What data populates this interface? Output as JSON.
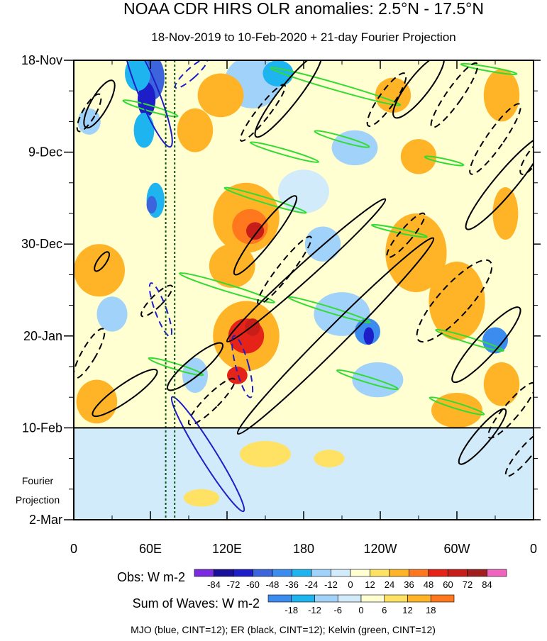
{
  "chart_data": {
    "type": "heatmap",
    "title": "NOAA CDR HIRS OLR anomalies: 2.5°N - 17.5°N",
    "subtitle": "18-Nov-2019 to 10-Feb-2020 + 21-day Fourier Projection",
    "x_axis": {
      "range_deg_east": [
        0,
        360
      ],
      "ticks": [
        {
          "label": "0",
          "lon": 0
        },
        {
          "label": "60E",
          "lon": 60
        },
        {
          "label": "120E",
          "lon": 120
        },
        {
          "label": "180",
          "lon": 180
        },
        {
          "label": "120W",
          "lon": 240
        },
        {
          "label": "60W",
          "lon": 300
        },
        {
          "label": "0",
          "lon": 360
        }
      ]
    },
    "y_axis": {
      "range_days": [
        0,
        105
      ],
      "ticks": [
        {
          "label": "18-Nov",
          "day": 0
        },
        {
          "label": "9-Dec",
          "day": 21
        },
        {
          "label": "30-Dec",
          "day": 42
        },
        {
          "label": "20-Jan",
          "day": 63
        },
        {
          "label": "10-Feb",
          "day": 84
        },
        {
          "label": "2-Mar",
          "day": 105
        }
      ],
      "projection_start_day": 84,
      "projection_label_1": "Fourier",
      "projection_label_2": "Projection"
    },
    "reference_lon_lines": [
      72,
      79
    ],
    "obs_colorbar": {
      "label": "Obs: W m-2",
      "levels": [
        "-84",
        "-72",
        "-60",
        "-48",
        "-36",
        "-24",
        "-12",
        "0",
        "12",
        "24",
        "36",
        "48",
        "60",
        "72",
        "84"
      ],
      "colors": [
        "#7b2be0",
        "#1a0f9a",
        "#1e1ec8",
        "#3c64dc",
        "#3c8cf0",
        "#1eb4f0",
        "#a0d2fa",
        "#d2ebfa",
        "#ffffd2",
        "#ffe164",
        "#ffb428",
        "#ff781e",
        "#e62319",
        "#c81e19",
        "#a01e1e",
        "#f064be"
      ]
    },
    "waves_colorbar": {
      "label": "Sum of Waves: W m-2",
      "levels": [
        "-18",
        "-12",
        "-6",
        "0",
        "6",
        "12",
        "18"
      ],
      "colors": [
        "#3c8cf0",
        "#1eb4f0",
        "#a0d2fa",
        "#d2ebfa",
        "#ffffd2",
        "#ffe164",
        "#ffb428",
        "#ff781e"
      ]
    },
    "contour_legend": "MJO (blue, CINT=12); ER (black, CINT=12); Kelvin (green, CINT=12)",
    "anomaly_blobs": [
      {
        "lon": 62,
        "day": 4,
        "rlon": 9,
        "rday": 5,
        "val": -60
      },
      {
        "lon": 57,
        "day": 9,
        "rlon": 7,
        "rday": 4,
        "val": -72
      },
      {
        "lon": 50,
        "day": 3,
        "rlon": 10,
        "rday": 4,
        "val": -36
      },
      {
        "lon": 55,
        "day": 16,
        "rlon": 8,
        "rday": 4,
        "val": -36
      },
      {
        "lon": 64,
        "day": 32,
        "rlon": 7,
        "rday": 4,
        "val": -36
      },
      {
        "lon": 61,
        "day": 33,
        "rlon": 4,
        "rday": 2,
        "val": -60
      },
      {
        "lon": 12,
        "day": 14,
        "rlon": 9,
        "rday": 3,
        "val": -24
      },
      {
        "lon": 140,
        "day": 5,
        "rlon": 22,
        "rday": 6,
        "val": -24
      },
      {
        "lon": 160,
        "day": 3,
        "rlon": 12,
        "rday": 3,
        "val": -36
      },
      {
        "lon": 95,
        "day": 16,
        "rlon": 14,
        "rday": 5,
        "val": 24
      },
      {
        "lon": 115,
        "day": 8,
        "rlon": 18,
        "rday": 5,
        "val": 24
      },
      {
        "lon": 135,
        "day": 36,
        "rlon": 26,
        "rday": 8,
        "val": 24
      },
      {
        "lon": 138,
        "day": 38,
        "rlon": 14,
        "rday": 4,
        "val": 36
      },
      {
        "lon": 142,
        "day": 39,
        "rlon": 7,
        "rday": 2,
        "val": 60
      },
      {
        "lon": 124,
        "day": 47,
        "rlon": 18,
        "rday": 5,
        "val": 24
      },
      {
        "lon": 135,
        "day": 63,
        "rlon": 26,
        "rday": 8,
        "val": 24
      },
      {
        "lon": 135,
        "day": 63,
        "rlon": 14,
        "rday": 4,
        "val": 48
      },
      {
        "lon": 140,
        "day": 61,
        "rlon": 6,
        "rday": 2,
        "val": 60
      },
      {
        "lon": 128,
        "day": 72,
        "rlon": 8,
        "rday": 2,
        "val": 48
      },
      {
        "lon": 210,
        "day": 58,
        "rlon": 22,
        "rday": 5,
        "val": -24
      },
      {
        "lon": 230,
        "day": 62,
        "rlon": 10,
        "rday": 3,
        "val": -48
      },
      {
        "lon": 231,
        "day": 63,
        "rlon": 4,
        "rday": 2,
        "val": -72
      },
      {
        "lon": 238,
        "day": 73,
        "rlon": 20,
        "rday": 4,
        "val": -24
      },
      {
        "lon": 220,
        "day": 20,
        "rlon": 18,
        "rday": 4,
        "val": -24
      },
      {
        "lon": 270,
        "day": 22,
        "rlon": 14,
        "rday": 4,
        "val": 24
      },
      {
        "lon": 268,
        "day": 44,
        "rlon": 24,
        "rday": 9,
        "val": 24
      },
      {
        "lon": 300,
        "day": 55,
        "rlon": 22,
        "rday": 9,
        "val": 24
      },
      {
        "lon": 335,
        "day": 8,
        "rlon": 14,
        "rday": 6,
        "val": 24
      },
      {
        "lon": 250,
        "day": 8,
        "rlon": 14,
        "rday": 4,
        "val": 24
      },
      {
        "lon": 338,
        "day": 35,
        "rlon": 10,
        "rday": 6,
        "val": 24
      },
      {
        "lon": 330,
        "day": 64,
        "rlon": 10,
        "rday": 3,
        "val": -48
      },
      {
        "lon": 335,
        "day": 74,
        "rlon": 14,
        "rday": 5,
        "val": 24
      },
      {
        "lon": 300,
        "day": 80,
        "rlon": 20,
        "rday": 4,
        "val": 24
      },
      {
        "lon": 20,
        "day": 48,
        "rlon": 20,
        "rday": 6,
        "val": 24
      },
      {
        "lon": 30,
        "day": 58,
        "rlon": 12,
        "rday": 4,
        "val": -24
      },
      {
        "lon": 18,
        "day": 78,
        "rlon": 16,
        "rday": 5,
        "val": 24
      },
      {
        "lon": 95,
        "day": 72,
        "rlon": 10,
        "rday": 4,
        "val": -24
      },
      {
        "lon": 180,
        "day": 30,
        "rlon": 20,
        "rday": 5,
        "val": -12
      },
      {
        "lon": 195,
        "day": 42,
        "rlon": 14,
        "rday": 4,
        "val": -24
      }
    ],
    "projection_blobs": [
      {
        "lon": 40,
        "day": 87,
        "rlon": 14,
        "rday": 2,
        "val": -6
      },
      {
        "lon": 230,
        "day": 95,
        "rlon": 30,
        "rday": 4,
        "val": -6
      },
      {
        "lon": 270,
        "day": 98,
        "rlon": 16,
        "rday": 3,
        "val": -6
      },
      {
        "lon": 150,
        "day": 90,
        "rlon": 20,
        "rday": 3,
        "val": 6
      },
      {
        "lon": 200,
        "day": 91,
        "rlon": 12,
        "rday": 2,
        "val": 6
      },
      {
        "lon": 330,
        "day": 97,
        "rlon": 20,
        "rday": 4,
        "val": -6
      },
      {
        "lon": 100,
        "day": 100,
        "rlon": 14,
        "rday": 2,
        "val": 6
      }
    ],
    "er_contours": [
      {
        "lon": 168,
        "day": 8,
        "rx": 14,
        "ry": 74,
        "rot": 38,
        "dashed": false
      },
      {
        "lon": 148,
        "day": 12,
        "rx": 9,
        "ry": 50,
        "rot": 38,
        "dashed": true
      },
      {
        "lon": 205,
        "day": 63,
        "rx": 14,
        "ry": 195,
        "rot": 45,
        "dashed": false
      },
      {
        "lon": 182,
        "day": 48,
        "rx": 11,
        "ry": 150,
        "rot": 48,
        "dashed": false
      },
      {
        "lon": 150,
        "day": 40,
        "rx": 12,
        "ry": 70,
        "rot": 38,
        "dashed": false
      },
      {
        "lon": 165,
        "day": 48,
        "rx": 10,
        "ry": 60,
        "rot": 38,
        "dashed": true
      },
      {
        "lon": 270,
        "day": 6,
        "rx": 15,
        "ry": 55,
        "rot": 38,
        "dashed": false
      },
      {
        "lon": 298,
        "day": 8,
        "rx": 11,
        "ry": 55,
        "rot": 35,
        "dashed": true
      },
      {
        "lon": 330,
        "day": 18,
        "rx": 12,
        "ry": 60,
        "rot": 35,
        "dashed": true
      },
      {
        "lon": 338,
        "day": 28,
        "rx": 15,
        "ry": 85,
        "rot": 40,
        "dashed": false
      },
      {
        "lon": 360,
        "day": 22,
        "rx": 9,
        "ry": 30,
        "rot": 35,
        "dashed": true
      },
      {
        "lon": 298,
        "day": 55,
        "rx": 22,
        "ry": 75,
        "rot": 42,
        "dashed": true
      },
      {
        "lon": 323,
        "day": 65,
        "rx": 15,
        "ry": 70,
        "rot": 42,
        "dashed": false
      },
      {
        "lon": 343,
        "day": 80,
        "rx": 11,
        "ry": 50,
        "rot": 40,
        "dashed": true
      },
      {
        "lon": 320,
        "day": 86,
        "rx": 11,
        "ry": 50,
        "rot": 40,
        "dashed": false
      },
      {
        "lon": 353,
        "day": 90,
        "rx": 9,
        "ry": 40,
        "rot": 40,
        "dashed": true
      },
      {
        "lon": 20,
        "day": 10,
        "rx": 12,
        "ry": 38,
        "rot": 30,
        "dashed": false
      },
      {
        "lon": 12,
        "day": 12,
        "rx": 9,
        "ry": 30,
        "rot": 30,
        "dashed": true
      },
      {
        "lon": 22,
        "day": 46,
        "rx": 6,
        "ry": 16,
        "rot": 35,
        "dashed": false
      },
      {
        "lon": 12,
        "day": 67,
        "rx": 10,
        "ry": 40,
        "rot": 30,
        "dashed": true
      },
      {
        "lon": 40,
        "day": 76,
        "rx": 12,
        "ry": 55,
        "rot": 55,
        "dashed": false
      },
      {
        "lon": 65,
        "day": 55,
        "rx": 8,
        "ry": 30,
        "rot": 45,
        "dashed": true
      },
      {
        "lon": 95,
        "day": 70,
        "rx": 12,
        "ry": 50,
        "rot": 50,
        "dashed": false
      },
      {
        "lon": 108,
        "day": 78,
        "rx": 10,
        "ry": 45,
        "rot": 45,
        "dashed": true
      },
      {
        "lon": 260,
        "day": 40,
        "rx": 9,
        "ry": 40,
        "rot": 40,
        "dashed": true
      },
      {
        "lon": 245,
        "day": 9,
        "rx": 11,
        "ry": 45,
        "rot": 35,
        "dashed": true
      }
    ],
    "mjo_contours": [
      {
        "lon": 58,
        "day": 7,
        "rx": 14,
        "ry": 85,
        "rot": -22,
        "dashed": false
      },
      {
        "lon": 92,
        "day": 3,
        "rx": 7,
        "ry": 30,
        "rot": 48,
        "dashed": true
      },
      {
        "lon": 68,
        "day": 57,
        "rx": 8,
        "ry": 40,
        "rot": -20,
        "dashed": true
      },
      {
        "lon": 132,
        "day": 70,
        "rx": 9,
        "ry": 45,
        "rot": -15,
        "dashed": true
      },
      {
        "lon": 105,
        "day": 90,
        "rx": 11,
        "ry": 95,
        "rot": -32,
        "dashed": false
      }
    ],
    "kelvin_contours": [
      {
        "lon": 205,
        "day": 6,
        "rx": 95,
        "ry": 5,
        "rot": 16
      },
      {
        "lon": 165,
        "day": 21,
        "rx": 50,
        "ry": 4,
        "rot": 16
      },
      {
        "lon": 210,
        "day": 18,
        "rx": 40,
        "ry": 4,
        "rot": 16
      },
      {
        "lon": 290,
        "day": 23,
        "rx": 28,
        "ry": 3,
        "rot": 12
      },
      {
        "lon": 150,
        "day": 32,
        "rx": 60,
        "ry": 4,
        "rot": 17
      },
      {
        "lon": 120,
        "day": 52,
        "rx": 70,
        "ry": 5,
        "rot": 17
      },
      {
        "lon": 200,
        "day": 57,
        "rx": 60,
        "ry": 4,
        "rot": 17
      },
      {
        "lon": 310,
        "day": 64,
        "rx": 50,
        "ry": 4,
        "rot": 17
      },
      {
        "lon": 80,
        "day": 70,
        "rx": 40,
        "ry": 4,
        "rot": 17
      },
      {
        "lon": 230,
        "day": 73,
        "rx": 45,
        "ry": 4,
        "rot": 17
      },
      {
        "lon": 300,
        "day": 79,
        "rx": 40,
        "ry": 4,
        "rot": 17
      },
      {
        "lon": 60,
        "day": 11,
        "rx": 40,
        "ry": 4,
        "rot": 16
      },
      {
        "lon": 325,
        "day": 2,
        "rx": 40,
        "ry": 3,
        "rot": 10
      },
      {
        "lon": 255,
        "day": 39,
        "rx": 40,
        "ry": 3,
        "rot": 12
      }
    ]
  }
}
